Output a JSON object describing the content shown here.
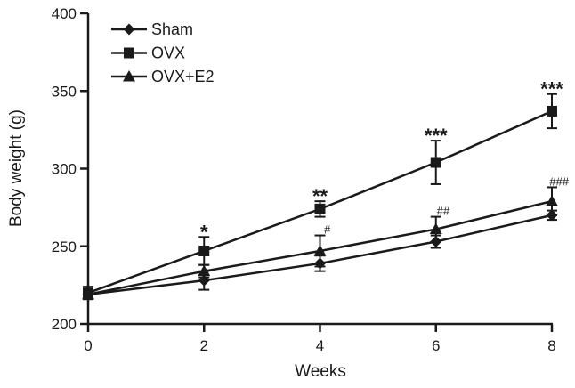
{
  "chart_data": {
    "type": "line",
    "title": "",
    "xlabel": "Weeks",
    "ylabel": "Body weight (g)",
    "xlim": [
      0,
      8
    ],
    "ylim": [
      200,
      400
    ],
    "xticks": [
      0,
      2,
      4,
      6,
      8
    ],
    "yticks": [
      200,
      250,
      300,
      350,
      400
    ],
    "grid": false,
    "legend_position": "top-left",
    "x": [
      0,
      2,
      4,
      6,
      8
    ],
    "series": [
      {
        "name": "Sham",
        "marker": "diamond",
        "values": [
          219,
          228,
          239,
          253,
          270
        ],
        "errors": [
          3,
          6,
          5,
          4,
          3
        ]
      },
      {
        "name": "OVX",
        "marker": "square",
        "values": [
          220,
          247,
          274,
          304,
          337
        ],
        "errors": [
          4,
          9,
          5,
          14,
          11
        ]
      },
      {
        "name": "OVX+E2",
        "marker": "triangle",
        "values": [
          219,
          234,
          247,
          261,
          279
        ],
        "errors": [
          3,
          4,
          10,
          8,
          9
        ]
      }
    ],
    "annotations": [
      {
        "series": "OVX",
        "x": 2,
        "text": "*",
        "kind": "star"
      },
      {
        "series": "OVX",
        "x": 4,
        "text": "**",
        "kind": "star"
      },
      {
        "series": "OVX",
        "x": 6,
        "text": "***",
        "kind": "star"
      },
      {
        "series": "OVX",
        "x": 8,
        "text": "***",
        "kind": "star"
      },
      {
        "series": "OVX+E2",
        "x": 4,
        "text": "#",
        "kind": "hash"
      },
      {
        "series": "OVX+E2",
        "x": 6,
        "text": "##",
        "kind": "hash"
      },
      {
        "series": "OVX+E2",
        "x": 8,
        "text": "###",
        "kind": "hash"
      }
    ]
  }
}
